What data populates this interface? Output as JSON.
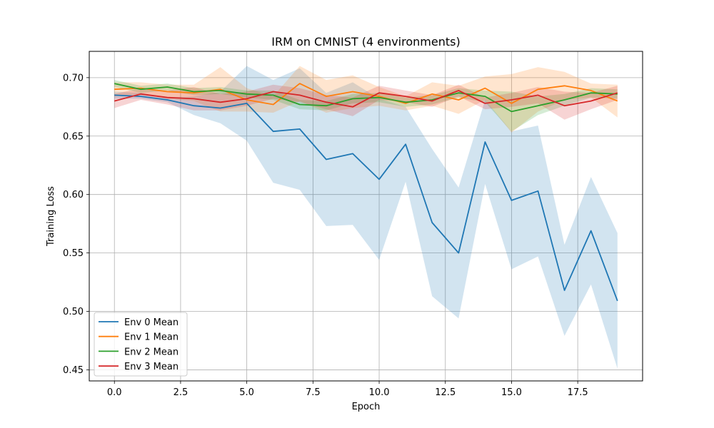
{
  "chart_data": {
    "type": "line",
    "title": "IRM on CMNIST (4 environments)",
    "xlabel": "Epoch",
    "ylabel": "Training Loss",
    "xlim": [
      -0.95,
      19.95
    ],
    "ylim": [
      0.4405,
      0.7225
    ],
    "xticks": [
      "0.0",
      "2.5",
      "5.0",
      "7.5",
      "10.0",
      "12.5",
      "15.0",
      "17.5"
    ],
    "xtick_values": [
      0,
      2.5,
      5,
      7.5,
      10,
      12.5,
      15,
      17.5
    ],
    "yticks": [
      "0.45",
      "0.50",
      "0.55",
      "0.60",
      "0.65",
      "0.70"
    ],
    "ytick_values": [
      0.45,
      0.5,
      0.55,
      0.6,
      0.65,
      0.7
    ],
    "grid": true,
    "legend_position": "lower-left",
    "x": [
      0,
      1,
      2,
      3,
      4,
      5,
      6,
      7,
      8,
      9,
      10,
      11,
      12,
      13,
      14,
      15,
      16,
      17,
      18,
      19
    ],
    "series": [
      {
        "name": "Env 0 Mean",
        "color": "#1f77b4",
        "values": [
          0.685,
          0.684,
          0.681,
          0.676,
          0.674,
          0.678,
          0.654,
          0.656,
          0.63,
          0.635,
          0.613,
          0.643,
          0.576,
          0.55,
          0.645,
          0.595,
          0.603,
          0.518,
          0.569,
          0.509
        ],
        "lower": [
          0.682,
          0.682,
          0.679,
          0.668,
          0.661,
          0.646,
          0.61,
          0.604,
          0.573,
          0.574,
          0.544,
          0.611,
          0.513,
          0.494,
          0.609,
          0.536,
          0.547,
          0.479,
          0.523,
          0.451
        ],
        "upper": [
          0.688,
          0.687,
          0.683,
          0.684,
          0.688,
          0.71,
          0.698,
          0.708,
          0.687,
          0.696,
          0.682,
          0.675,
          0.639,
          0.606,
          0.681,
          0.654,
          0.659,
          0.557,
          0.615,
          0.567
        ]
      },
      {
        "name": "Env 1 Mean",
        "color": "#ff7f0e",
        "values": [
          0.69,
          0.691,
          0.688,
          0.687,
          0.69,
          0.681,
          0.677,
          0.695,
          0.684,
          0.688,
          0.684,
          0.678,
          0.686,
          0.681,
          0.691,
          0.678,
          0.69,
          0.693,
          0.689,
          0.68
        ],
        "lower": [
          0.684,
          0.686,
          0.682,
          0.68,
          0.671,
          0.671,
          0.67,
          0.68,
          0.67,
          0.674,
          0.676,
          0.672,
          0.676,
          0.669,
          0.681,
          0.653,
          0.671,
          0.681,
          0.683,
          0.666
        ],
        "upper": [
          0.696,
          0.696,
          0.694,
          0.694,
          0.709,
          0.691,
          0.684,
          0.71,
          0.698,
          0.702,
          0.692,
          0.684,
          0.696,
          0.693,
          0.701,
          0.703,
          0.709,
          0.705,
          0.695,
          0.694
        ]
      },
      {
        "name": "Env 2 Mean",
        "color": "#2ca02c",
        "values": [
          0.695,
          0.69,
          0.692,
          0.688,
          0.689,
          0.686,
          0.685,
          0.677,
          0.676,
          0.682,
          0.683,
          0.679,
          0.681,
          0.687,
          0.684,
          0.671,
          0.676,
          0.681,
          0.687,
          0.686
        ],
        "lower": [
          0.692,
          0.687,
          0.689,
          0.685,
          0.686,
          0.683,
          0.681,
          0.673,
          0.672,
          0.678,
          0.679,
          0.675,
          0.677,
          0.683,
          0.679,
          0.654,
          0.668,
          0.676,
          0.683,
          0.682
        ],
        "upper": [
          0.698,
          0.693,
          0.695,
          0.691,
          0.692,
          0.689,
          0.689,
          0.681,
          0.68,
          0.686,
          0.687,
          0.683,
          0.685,
          0.691,
          0.689,
          0.688,
          0.684,
          0.686,
          0.691,
          0.69
        ]
      },
      {
        "name": "Env 3 Mean",
        "color": "#d62728",
        "values": [
          0.68,
          0.686,
          0.683,
          0.682,
          0.679,
          0.682,
          0.688,
          0.685,
          0.679,
          0.675,
          0.687,
          0.684,
          0.68,
          0.689,
          0.678,
          0.681,
          0.685,
          0.676,
          0.68,
          0.687
        ],
        "lower": [
          0.674,
          0.681,
          0.677,
          0.672,
          0.672,
          0.676,
          0.682,
          0.679,
          0.673,
          0.667,
          0.681,
          0.679,
          0.675,
          0.684,
          0.673,
          0.675,
          0.678,
          0.664,
          0.673,
          0.681
        ],
        "upper": [
          0.686,
          0.691,
          0.689,
          0.692,
          0.686,
          0.688,
          0.694,
          0.691,
          0.685,
          0.683,
          0.693,
          0.689,
          0.685,
          0.694,
          0.683,
          0.687,
          0.692,
          0.688,
          0.687,
          0.693
        ]
      }
    ]
  }
}
